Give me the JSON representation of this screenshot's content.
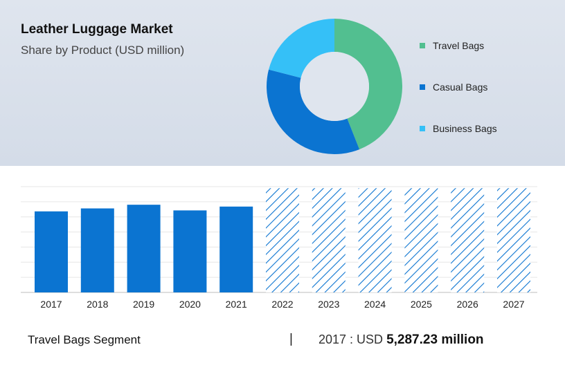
{
  "header": {
    "title": "Leather Luggage Market",
    "subtitle": "Share by Product (USD million)"
  },
  "chart_data": [
    {
      "type": "pie",
      "style": "donut",
      "title": "Leather Luggage Market",
      "subtitle": "Share by Product (USD million)",
      "legend_position": "right",
      "slices": [
        {
          "name": "Travel Bags",
          "value": 44,
          "color": "#52bf90"
        },
        {
          "name": "Casual Bags",
          "value": 35,
          "color": "#0b74d1"
        },
        {
          "name": "Business Bags",
          "value": 21,
          "color": "#35c0f7"
        }
      ]
    },
    {
      "type": "bar",
      "categories": [
        "2017",
        "2018",
        "2019",
        "2020",
        "2021",
        "2022",
        "2023",
        "2024",
        "2025",
        "2026",
        "2027"
      ],
      "values": [
        5287.23,
        5480,
        5720,
        5350,
        5600,
        6800,
        6800,
        6800,
        6800,
        6800,
        6800
      ],
      "forecast": [
        false,
        false,
        false,
        false,
        false,
        true,
        true,
        true,
        true,
        true,
        true
      ],
      "ylim": [
        0,
        6900
      ],
      "grid": true,
      "colors": {
        "actual": "#0b74d1",
        "forecast": "#0b74d1"
      }
    }
  ],
  "footer": {
    "segment_label": "Travel Bags Segment",
    "separator": "|",
    "year_prefix": "2017 : USD",
    "value": "5,287.23 million"
  }
}
